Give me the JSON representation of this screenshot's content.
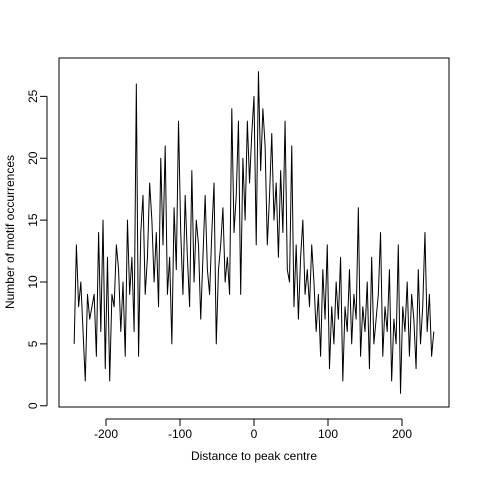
{
  "chart_data": {
    "type": "line",
    "xlabel": "Distance to peak centre",
    "ylabel": "Number of motif occurrences",
    "xlim": [
      -263.5,
      263.5
    ],
    "ylim": [
      -0.1,
      28.1
    ],
    "xticks": [
      -200,
      -100,
      0,
      100,
      200
    ],
    "yticks": [
      0,
      5,
      10,
      15,
      20,
      25
    ],
    "x": [
      -243,
      -240,
      -237,
      -234,
      -231,
      -228,
      -225,
      -222,
      -219,
      -216,
      -213,
      -210,
      -207,
      -204,
      -201,
      -198,
      -195,
      -192,
      -189,
      -186,
      -183,
      -180,
      -177,
      -174,
      -171,
      -168,
      -165,
      -162,
      -159,
      -156,
      -153,
      -150,
      -147,
      -144,
      -141,
      -138,
      -135,
      -132,
      -129,
      -126,
      -123,
      -120,
      -117,
      -114,
      -111,
      -108,
      -105,
      -102,
      -99,
      -96,
      -93,
      -90,
      -87,
      -84,
      -81,
      -78,
      -75,
      -72,
      -69,
      -66,
      -63,
      -60,
      -57,
      -54,
      -51,
      -48,
      -45,
      -42,
      -39,
      -36,
      -33,
      -30,
      -27,
      -24,
      -21,
      -18,
      -15,
      -12,
      -9,
      -6,
      -3,
      0,
      3,
      6,
      9,
      12,
      15,
      18,
      21,
      24,
      27,
      30,
      33,
      36,
      39,
      42,
      45,
      48,
      51,
      54,
      57,
      60,
      63,
      66,
      69,
      72,
      75,
      78,
      81,
      84,
      87,
      90,
      93,
      96,
      99,
      102,
      105,
      108,
      111,
      114,
      117,
      120,
      123,
      126,
      129,
      132,
      135,
      138,
      141,
      144,
      147,
      150,
      153,
      156,
      159,
      162,
      165,
      168,
      171,
      174,
      177,
      180,
      183,
      186,
      189,
      192,
      195,
      198,
      201,
      204,
      207,
      210,
      213,
      216,
      219,
      222,
      225,
      228,
      231,
      234,
      237,
      240,
      243
    ],
    "series": [
      {
        "color": "#000000",
        "values": [
          5,
          13,
          8,
          10,
          6,
          2,
          9,
          7,
          8,
          9,
          4,
          14,
          6,
          15,
          3,
          12,
          2,
          9,
          8,
          13,
          11,
          6,
          10,
          4,
          15,
          9,
          12,
          6,
          26,
          4,
          14,
          17,
          9,
          12,
          18,
          15,
          10,
          14,
          8,
          20,
          13,
          21,
          9,
          12,
          5,
          16,
          11,
          23,
          14,
          9,
          17,
          12,
          8,
          19,
          10,
          15,
          13,
          7,
          12,
          17,
          11,
          9,
          14,
          18,
          5,
          11,
          13,
          16,
          10,
          12,
          9,
          24,
          14,
          17,
          23,
          9,
          20,
          15,
          23,
          18,
          22,
          25,
          13,
          27,
          19,
          24,
          21,
          13,
          17,
          22,
          15,
          18,
          12,
          19,
          14,
          23,
          11,
          10,
          21,
          8,
          13,
          7,
          12,
          15,
          9,
          11,
          8,
          13,
          10,
          6,
          9,
          4,
          11,
          7,
          13,
          3,
          8,
          5,
          10,
          7,
          12,
          2,
          8,
          6,
          11,
          5,
          9,
          7,
          16,
          4,
          8,
          6,
          10,
          3,
          12,
          5,
          7,
          9,
          14,
          4,
          8,
          6,
          11,
          2,
          7,
          5,
          13,
          1,
          8,
          6,
          10,
          4,
          9,
          7,
          3,
          11,
          5,
          8,
          14,
          6,
          9,
          4,
          6
        ]
      }
    ]
  }
}
